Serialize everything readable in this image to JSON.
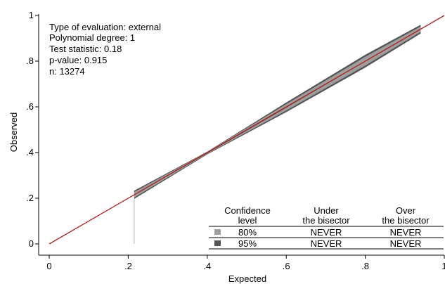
{
  "chart_data": {
    "type": "line",
    "title": "",
    "xlabel": "Expected",
    "ylabel": "Observed",
    "xlim": [
      0,
      1
    ],
    "ylim": [
      0,
      1
    ],
    "xticks": [
      "0",
      ".2",
      ".4",
      ".6",
      ".8",
      "1"
    ],
    "yticks": [
      "0",
      ".2",
      ".4",
      ".6",
      ".8",
      "1"
    ],
    "grid": false,
    "colors": {
      "bisector": "#b22222",
      "band_95": "#555555",
      "band_80": "#9e9e9e",
      "calibration_line": "#333333",
      "spike": "#b0b0b0"
    },
    "annotations": [
      "Type of evaluation: external",
      "Polynomial degree: 1",
      "Test statistic: 0.18",
      "p-value: 0.915",
      "n: 13274"
    ],
    "bisector": {
      "x": [
        0,
        1
      ],
      "y": [
        0,
        1
      ]
    },
    "calibration": {
      "x": [
        0.215,
        0.4,
        0.6,
        0.8,
        0.94
      ],
      "y": [
        0.215,
        0.398,
        0.598,
        0.8,
        0.94
      ],
      "ci95_low": [
        0.197,
        0.392,
        0.577,
        0.772,
        0.921
      ],
      "ci95_high": [
        0.233,
        0.404,
        0.619,
        0.828,
        0.959
      ],
      "ci80_low": [
        0.203,
        0.394,
        0.584,
        0.781,
        0.928
      ],
      "ci80_high": [
        0.227,
        0.402,
        0.612,
        0.819,
        0.952
      ]
    },
    "expected_min_spike": 0.215,
    "table": {
      "headers": [
        {
          "line1": "Confidence",
          "line2": "level"
        },
        {
          "line1": "Under",
          "line2": "the bisector"
        },
        {
          "line1": "Over",
          "line2": "the bisector"
        }
      ],
      "rows": [
        {
          "level": "80%",
          "under": "NEVER",
          "over": "NEVER"
        },
        {
          "level": "95%",
          "under": "NEVER",
          "over": "NEVER"
        }
      ]
    }
  }
}
